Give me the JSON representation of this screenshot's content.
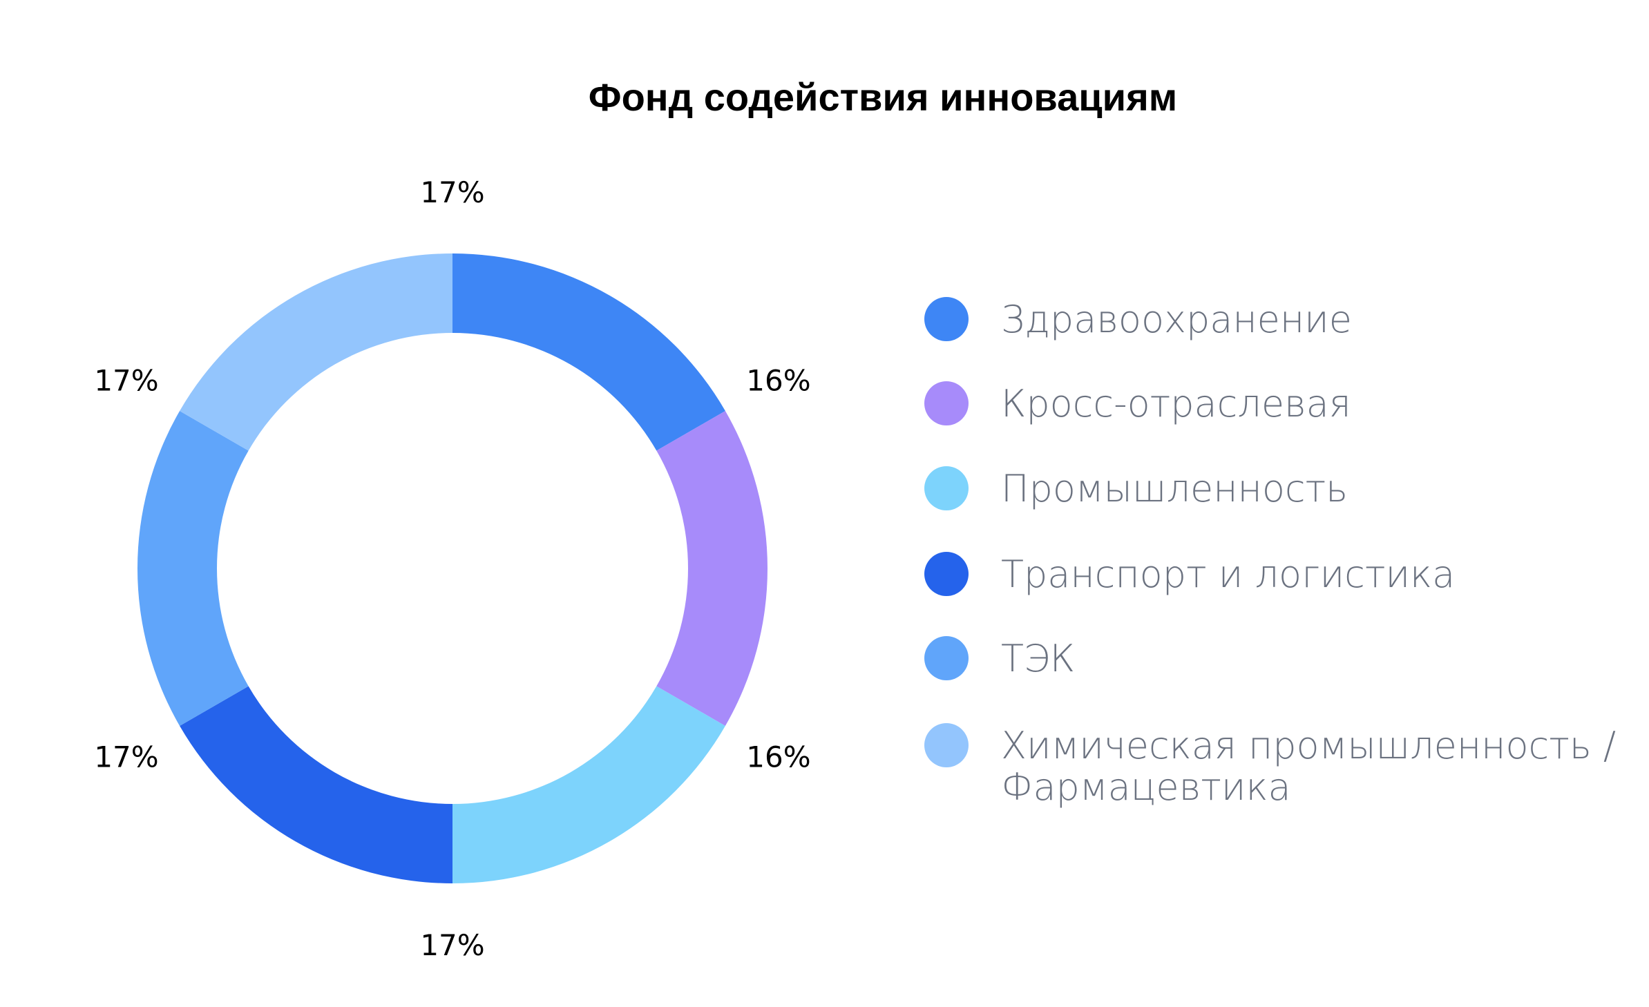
{
  "chart_data": {
    "type": "pie",
    "variant": "donut",
    "title": "Фонд содействия инновациям",
    "categories": [
      "Здравоохранение",
      "Кросс-отраслевая",
      "Промышленность",
      "Транспорт и логистика",
      "ТЭК",
      "Химическая промышленность / Фармацевтика"
    ],
    "legend_lines": [
      [
        "Здравоохранение"
      ],
      [
        "Кросс-отраслевая"
      ],
      [
        "Промышленность"
      ],
      [
        "Транспорт и логистика"
      ],
      [
        "ТЭК"
      ],
      [
        "Химическая промышленность /",
        "Фармацевтика"
      ]
    ],
    "values": [
      16,
      16,
      17,
      17,
      17,
      17
    ],
    "labels": [
      "16%",
      "16%",
      "17%",
      "17%",
      "17%",
      "17%"
    ],
    "colors": [
      "#3E86F5",
      "#A78BFA",
      "#7DD3FC",
      "#2563EB",
      "#60A5FA",
      "#93C5FD"
    ],
    "legend_position": "right"
  }
}
